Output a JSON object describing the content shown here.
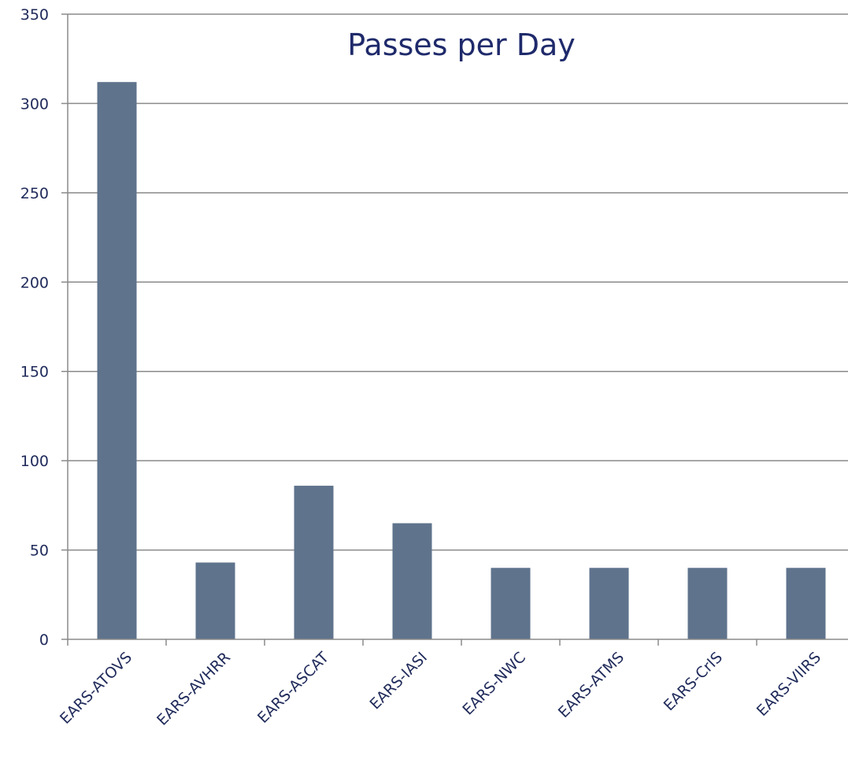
{
  "chart_data": {
    "type": "bar",
    "title": "Passes per Day",
    "xlabel": "",
    "ylabel": "",
    "categories": [
      "EARS-ATOVS",
      "EARS-AVHRR",
      "EARS-ASCAT",
      "EARS-IASI",
      "EARS-NWC",
      "EARS-ATMS",
      "EARS-CrIS",
      "EARS-VIIRS"
    ],
    "values": [
      312,
      43,
      86,
      65,
      40,
      40,
      40,
      40
    ],
    "ylim": [
      0,
      350
    ],
    "yticks": [
      "0",
      "50",
      "100",
      "150",
      "200",
      "250",
      "300",
      "350"
    ],
    "grid": "horizontal",
    "legend": "none",
    "colors": {
      "bar": "#5f738c",
      "grid": "#8a8a8a",
      "axis": "#8a8a8a",
      "text": "#1f2a5a",
      "title": "#1f2a6b"
    }
  }
}
